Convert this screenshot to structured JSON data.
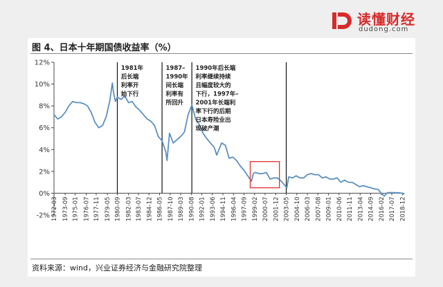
{
  "brand": {
    "name": "读懂财经",
    "domain": "dudong.com",
    "colors": {
      "primary": "#d62b2b"
    }
  },
  "figure": {
    "title": "图 4、日本十年期国债收益率（%）",
    "source": "资料来源：wind，兴业证券经济与金融研究院整理"
  },
  "chart_data": {
    "type": "line",
    "series": [
      {
        "color": "#5b8fc2",
        "points": [
          [
            "1972-03",
            7.2
          ],
          [
            "1972-09",
            6.8
          ],
          [
            "1973-03",
            7.0
          ],
          [
            "1973-09",
            7.4
          ],
          [
            "1974-03",
            8.0
          ],
          [
            "1974-09",
            8.4
          ],
          [
            "1975-03",
            8.3
          ],
          [
            "1975-09",
            8.3
          ],
          [
            "1976-03",
            8.2
          ],
          [
            "1976-09",
            8.0
          ],
          [
            "1977-03",
            7.4
          ],
          [
            "1977-09",
            6.5
          ],
          [
            "1978-03",
            6.0
          ],
          [
            "1978-09",
            6.2
          ],
          [
            "1979-03",
            7.0
          ],
          [
            "1979-09",
            8.5
          ],
          [
            "1980-01",
            10.1
          ],
          [
            "1980-03",
            9.2
          ],
          [
            "1980-06",
            8.4
          ],
          [
            "1980-09",
            8.8
          ],
          [
            "1981-03",
            8.6
          ],
          [
            "1981-09",
            8.9
          ],
          [
            "1982-03",
            8.3
          ],
          [
            "1982-09",
            8.4
          ],
          [
            "1983-03",
            7.9
          ],
          [
            "1983-09",
            7.6
          ],
          [
            "1984-03",
            7.2
          ],
          [
            "1984-09",
            6.8
          ],
          [
            "1985-03",
            6.6
          ],
          [
            "1985-09",
            6.2
          ],
          [
            "1986-03",
            5.2
          ],
          [
            "1986-09",
            4.8
          ],
          [
            "1987-03",
            3.8
          ],
          [
            "1987-05",
            3.0
          ],
          [
            "1987-09",
            5.5
          ],
          [
            "1988-03",
            4.6
          ],
          [
            "1988-09",
            4.9
          ],
          [
            "1989-03",
            5.2
          ],
          [
            "1989-09",
            5.6
          ],
          [
            "1990-03",
            7.2
          ],
          [
            "1990-09",
            8.1
          ],
          [
            "1991-03",
            6.8
          ],
          [
            "1991-09",
            6.3
          ],
          [
            "1992-03",
            5.5
          ],
          [
            "1992-09",
            5.0
          ],
          [
            "1993-03",
            4.6
          ],
          [
            "1993-09",
            4.2
          ],
          [
            "1994-01",
            3.5
          ],
          [
            "1994-09",
            4.6
          ],
          [
            "1995-03",
            4.4
          ],
          [
            "1995-09",
            3.2
          ],
          [
            "1996-03",
            3.3
          ],
          [
            "1996-09",
            3.0
          ],
          [
            "1997-03",
            2.5
          ],
          [
            "1997-09",
            2.1
          ],
          [
            "1998-03",
            1.6
          ],
          [
            "1998-09",
            1.1
          ],
          [
            "1998-12",
            1.8
          ],
          [
            "1999-03",
            1.9
          ],
          [
            "1999-09",
            1.8
          ],
          [
            "2000-03",
            1.8
          ],
          [
            "2000-09",
            1.9
          ],
          [
            "2001-03",
            1.3
          ],
          [
            "2001-09",
            1.4
          ],
          [
            "2002-03",
            1.4
          ],
          [
            "2002-09",
            1.1
          ],
          [
            "2003-06",
            0.5
          ],
          [
            "2003-09",
            1.5
          ],
          [
            "2004-03",
            1.4
          ],
          [
            "2004-09",
            1.6
          ],
          [
            "2005-03",
            1.4
          ],
          [
            "2005-09",
            1.4
          ],
          [
            "2006-03",
            1.7
          ],
          [
            "2006-09",
            1.8
          ],
          [
            "2007-03",
            1.7
          ],
          [
            "2007-09",
            1.7
          ],
          [
            "2008-03",
            1.4
          ],
          [
            "2008-09",
            1.5
          ],
          [
            "2009-03",
            1.3
          ],
          [
            "2009-09",
            1.3
          ],
          [
            "2010-03",
            1.4
          ],
          [
            "2010-09",
            1.0
          ],
          [
            "2011-03",
            1.2
          ],
          [
            "2011-09",
            1.0
          ],
          [
            "2012-03",
            1.0
          ],
          [
            "2012-09",
            0.8
          ],
          [
            "2013-03",
            0.6
          ],
          [
            "2013-09",
            0.7
          ],
          [
            "2014-03",
            0.6
          ],
          [
            "2014-09",
            0.5
          ],
          [
            "2015-03",
            0.4
          ],
          [
            "2015-09",
            0.35
          ],
          [
            "2016-03",
            -0.05
          ],
          [
            "2016-07",
            -0.25
          ],
          [
            "2016-12",
            0.05
          ],
          [
            "2017-06",
            0.06
          ],
          [
            "2017-12",
            0.05
          ],
          [
            "2018-06",
            0.04
          ],
          [
            "2018-12",
            0.0
          ],
          [
            "2019-03",
            -0.1
          ]
        ]
      }
    ],
    "ylim": [
      -2,
      12
    ],
    "y_ticks": [
      "-2%",
      "0%",
      "2%",
      "4%",
      "6%",
      "8%",
      "10%",
      "12%"
    ],
    "x_ticks": [
      "1972-03",
      "1973-09",
      "1975-01",
      "1976-07",
      "1977-11",
      "1979-05",
      "1980-09",
      "1982-03",
      "1983-07",
      "1984-12",
      "1986-05",
      "1987-10",
      "1989-03",
      "1990-08",
      "1992-01",
      "1993-06",
      "1994-11",
      "1996-04",
      "1997-09",
      "1999-02",
      "2000-07",
      "2001-12",
      "2003-05",
      "2004-10",
      "2006-03",
      "2007-08",
      "2009-01",
      "2010-06",
      "2011-11",
      "2013-04",
      "2014-09",
      "2016-02",
      "2017-07",
      "2018-12"
    ],
    "x_range": [
      "1972-03",
      "2019-03"
    ],
    "grid": false,
    "vlines": [
      "1980-09",
      "1986-09",
      "1990-09",
      "2003-05"
    ],
    "highlight_box": {
      "x": [
        "1998-07",
        "2002-06"
      ],
      "y": [
        0.5,
        2.9
      ],
      "color": "#e03030"
    },
    "annotations": [
      {
        "x": "1981-03",
        "lines": [
          "1981年",
          "后长端",
          "利率开",
          "始下行"
        ]
      },
      {
        "x": "1987-03",
        "lines": [
          "1987–",
          "1990年",
          "间长端",
          "利率有",
          "所回升"
        ]
      },
      {
        "x": "1991-03",
        "lines": [
          "1990年后长端",
          "利率继续持续",
          "且幅度较大的",
          "下行，1997年–",
          "2001年长端利",
          "率下行的后期",
          "日本寿险业出",
          "现破产潮"
        ]
      }
    ]
  }
}
